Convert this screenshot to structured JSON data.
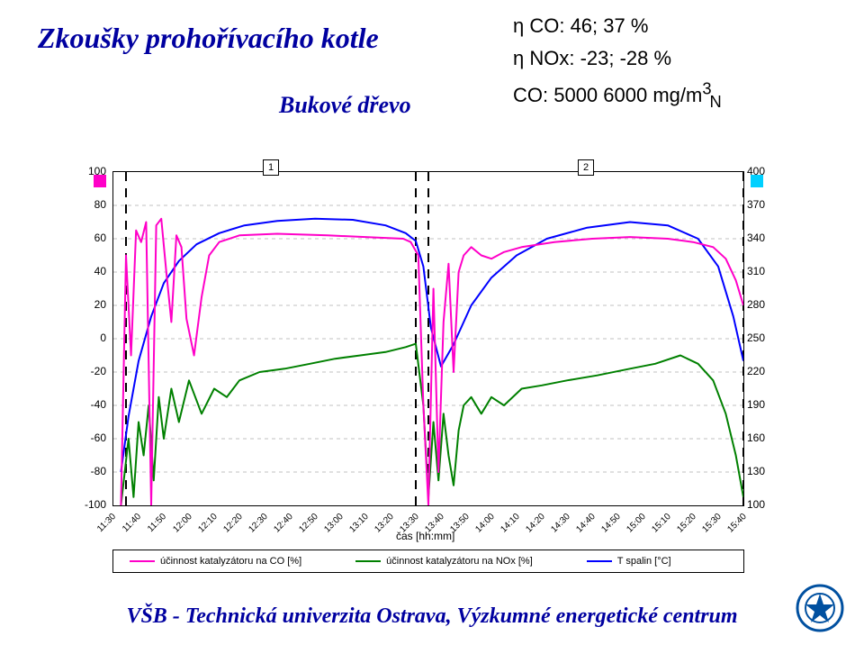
{
  "title_left": "Zkoušky prohořívacího kotle",
  "title_sub": "Bukové dřevo",
  "metrics": {
    "co_eff": "η CO: 46; 37 %",
    "nox_eff": "η NOx: -23; -28 %",
    "co_conc": "CO: 5000 6000 mg/m³ₙ"
  },
  "footer": "VŠB - Technická univerzita Ostrava, Výzkumné energetické centrum",
  "chart": {
    "bg": "#ffffff",
    "grid_color": "#c0c0c0",
    "axis_fontsize": 12,
    "tick_fontsize": 10,
    "x_axis_label": "čas [hh:mm]",
    "y_left": {
      "min": -100,
      "max": 100,
      "step": 20
    },
    "y_right": {
      "min": 100,
      "max": 400,
      "step": 30
    },
    "zones": [
      {
        "label": "1",
        "x_start": "11:35",
        "x_end": "13:30"
      },
      {
        "label": "2",
        "x_start": "13:35",
        "x_end": "15:40"
      }
    ],
    "x_ticks": [
      "11:30",
      "11:40",
      "11:50",
      "12:00",
      "12:10",
      "12:20",
      "12:30",
      "12:40",
      "12:50",
      "13:00",
      "13:10",
      "13:20",
      "13:30",
      "13:40",
      "13:50",
      "14:00",
      "14:10",
      "14:20",
      "14:30",
      "14:40",
      "14:50",
      "15:00",
      "15:10",
      "15:20",
      "15:30",
      "15:40"
    ],
    "series": {
      "co_eff": {
        "legend": "účinnost katalyzátoru na CO [%]",
        "color": "#ff00c8",
        "axis": "left",
        "width": 2,
        "points": [
          [
            "11:33",
            -100
          ],
          [
            "11:35",
            50
          ],
          [
            "11:37",
            -10
          ],
          [
            "11:39",
            65
          ],
          [
            "11:41",
            58
          ],
          [
            "11:43",
            70
          ],
          [
            "11:45",
            -100
          ],
          [
            "11:47",
            68
          ],
          [
            "11:49",
            72
          ],
          [
            "11:51",
            40
          ],
          [
            "11:53",
            10
          ],
          [
            "11:55",
            62
          ],
          [
            "11:57",
            55
          ],
          [
            "11:59",
            12
          ],
          [
            "12:02",
            -10
          ],
          [
            "12:05",
            25
          ],
          [
            "12:08",
            50
          ],
          [
            "12:12",
            58
          ],
          [
            "12:20",
            62
          ],
          [
            "12:35",
            63
          ],
          [
            "12:55",
            62
          ],
          [
            "13:10",
            61
          ],
          [
            "13:25",
            60
          ],
          [
            "13:28",
            58
          ],
          [
            "13:31",
            50
          ],
          [
            "13:33",
            -40
          ],
          [
            "13:35",
            -100
          ],
          [
            "13:37",
            30
          ],
          [
            "13:39",
            -80
          ],
          [
            "13:41",
            10
          ],
          [
            "13:43",
            45
          ],
          [
            "13:45",
            -20
          ],
          [
            "13:47",
            40
          ],
          [
            "13:49",
            50
          ],
          [
            "13:52",
            55
          ],
          [
            "13:56",
            50
          ],
          [
            "14:00",
            48
          ],
          [
            "14:05",
            52
          ],
          [
            "14:12",
            55
          ],
          [
            "14:25",
            58
          ],
          [
            "14:40",
            60
          ],
          [
            "14:55",
            61
          ],
          [
            "15:10",
            60
          ],
          [
            "15:20",
            58
          ],
          [
            "15:28",
            55
          ],
          [
            "15:33",
            48
          ],
          [
            "15:37",
            35
          ],
          [
            "15:40",
            20
          ]
        ]
      },
      "nox_eff": {
        "legend": "účinnost katalyzátoru na NOx [%]",
        "color": "#008000",
        "axis": "left",
        "width": 2,
        "points": [
          [
            "11:33",
            -100
          ],
          [
            "11:36",
            -60
          ],
          [
            "11:38",
            -95
          ],
          [
            "11:40",
            -50
          ],
          [
            "11:42",
            -70
          ],
          [
            "11:44",
            -40
          ],
          [
            "11:46",
            -85
          ],
          [
            "11:48",
            -35
          ],
          [
            "11:50",
            -60
          ],
          [
            "11:53",
            -30
          ],
          [
            "11:56",
            -50
          ],
          [
            "12:00",
            -25
          ],
          [
            "12:05",
            -45
          ],
          [
            "12:10",
            -30
          ],
          [
            "12:15",
            -35
          ],
          [
            "12:20",
            -25
          ],
          [
            "12:28",
            -20
          ],
          [
            "12:38",
            -18
          ],
          [
            "12:48",
            -15
          ],
          [
            "12:58",
            -12
          ],
          [
            "13:08",
            -10
          ],
          [
            "13:18",
            -8
          ],
          [
            "13:26",
            -5
          ],
          [
            "13:30",
            -3
          ],
          [
            "13:33",
            -40
          ],
          [
            "13:35",
            -95
          ],
          [
            "13:37",
            -50
          ],
          [
            "13:39",
            -85
          ],
          [
            "13:41",
            -45
          ],
          [
            "13:43",
            -70
          ],
          [
            "13:45",
            -88
          ],
          [
            "13:47",
            -55
          ],
          [
            "13:49",
            -40
          ],
          [
            "13:52",
            -35
          ],
          [
            "13:56",
            -45
          ],
          [
            "14:00",
            -35
          ],
          [
            "14:05",
            -40
          ],
          [
            "14:12",
            -30
          ],
          [
            "14:20",
            -28
          ],
          [
            "14:30",
            -25
          ],
          [
            "14:42",
            -22
          ],
          [
            "14:55",
            -18
          ],
          [
            "15:05",
            -15
          ],
          [
            "15:15",
            -10
          ],
          [
            "15:22",
            -15
          ],
          [
            "15:28",
            -25
          ],
          [
            "15:33",
            -45
          ],
          [
            "15:37",
            -70
          ],
          [
            "15:40",
            -95
          ]
        ]
      },
      "temp": {
        "legend": "T spalin [°C]",
        "color": "#0000ff",
        "axis": "right",
        "width": 2,
        "points": [
          [
            "11:33",
            130
          ],
          [
            "11:36",
            180
          ],
          [
            "11:40",
            230
          ],
          [
            "11:45",
            270
          ],
          [
            "11:50",
            300
          ],
          [
            "11:56",
            320
          ],
          [
            "12:03",
            335
          ],
          [
            "12:12",
            345
          ],
          [
            "12:22",
            352
          ],
          [
            "12:35",
            356
          ],
          [
            "12:50",
            358
          ],
          [
            "13:05",
            357
          ],
          [
            "13:18",
            352
          ],
          [
            "13:26",
            345
          ],
          [
            "13:30",
            338
          ],
          [
            "13:33",
            315
          ],
          [
            "13:36",
            260
          ],
          [
            "13:40",
            225
          ],
          [
            "13:45",
            245
          ],
          [
            "13:52",
            280
          ],
          [
            "14:00",
            305
          ],
          [
            "14:10",
            325
          ],
          [
            "14:22",
            340
          ],
          [
            "14:38",
            350
          ],
          [
            "14:55",
            355
          ],
          [
            "15:10",
            352
          ],
          [
            "15:22",
            340
          ],
          [
            "15:30",
            315
          ],
          [
            "15:36",
            270
          ],
          [
            "15:40",
            230
          ]
        ]
      }
    },
    "legend_left_marker": "#ff00c8",
    "legend_right_marker": "#00d0ff"
  }
}
